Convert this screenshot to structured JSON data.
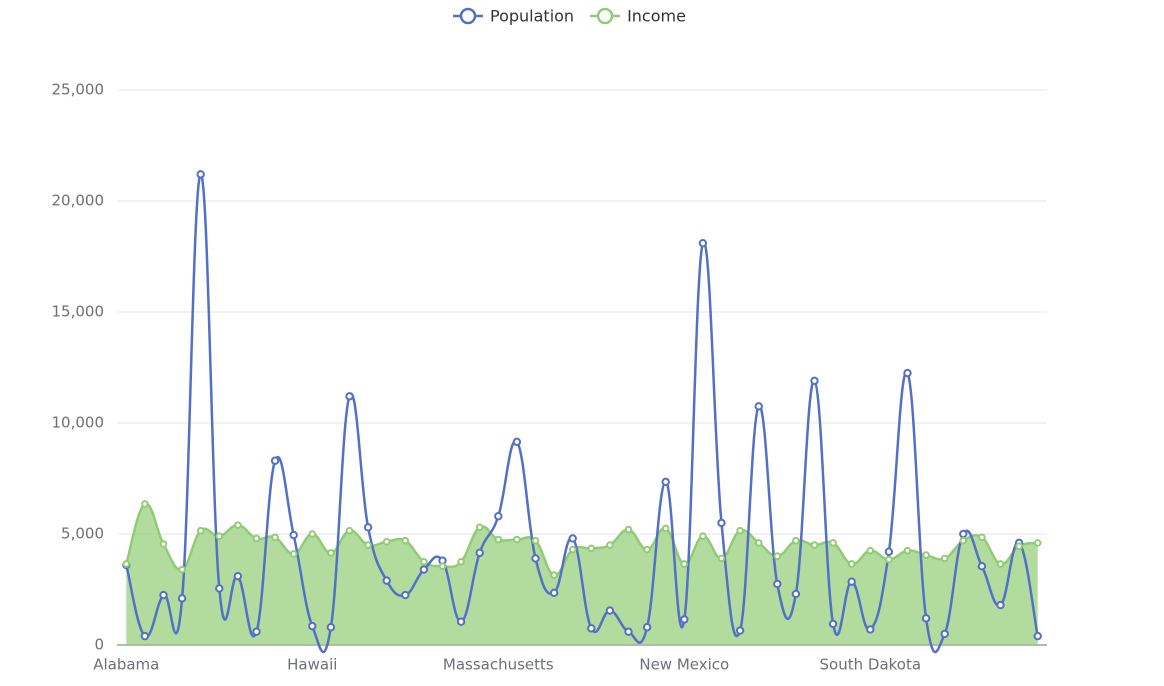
{
  "chart_data": {
    "type": "line",
    "categories": [
      "Alabama",
      null,
      null,
      null,
      null,
      null,
      null,
      null,
      null,
      null,
      "Hawaii",
      null,
      null,
      null,
      null,
      null,
      null,
      null,
      null,
      null,
      "Massachusetts",
      null,
      null,
      null,
      null,
      null,
      null,
      null,
      null,
      null,
      "New Mexico",
      null,
      null,
      null,
      null,
      null,
      null,
      null,
      null,
      null,
      "South Dakota",
      null,
      null,
      null,
      null,
      null,
      null,
      null,
      null,
      null
    ],
    "series": [
      {
        "name": "Population",
        "color": "#5470c6",
        "values": [
          3600,
          400,
          2250,
          2100,
          21200,
          2550,
          3100,
          600,
          8300,
          4950,
          850,
          800,
          11200,
          5300,
          2900,
          2250,
          3400,
          3800,
          1050,
          4150,
          5800,
          9150,
          3900,
          2350,
          4800,
          750,
          1550,
          600,
          800,
          7350,
          1150,
          18100,
          5500,
          650,
          10750,
          2750,
          2300,
          11900,
          950,
          2850,
          700,
          4200,
          12250,
          1200,
          500,
          5000,
          3550,
          1800,
          4600,
          400
        ]
      },
      {
        "name": "Income",
        "color": "#91cc75",
        "area": true,
        "values": [
          3650,
          6350,
          4550,
          3400,
          5150,
          4900,
          5400,
          4800,
          4850,
          4100,
          5000,
          4150,
          5150,
          4500,
          4650,
          4700,
          3750,
          3550,
          3750,
          5300,
          4750,
          4750,
          4700,
          3150,
          4300,
          4350,
          4500,
          5200,
          4300,
          5250,
          3650,
          4900,
          3900,
          5150,
          4600,
          4000,
          4700,
          4500,
          4600,
          3650,
          4250,
          3850,
          4250,
          4050,
          3900,
          4700,
          4850,
          3650,
          4450,
          4600
        ]
      }
    ],
    "ylim": [
      0,
      25000
    ],
    "yticks": [
      0,
      {
        "value": 5000,
        "label": "5,000"
      },
      {
        "value": 10000,
        "label": "10,000"
      },
      {
        "value": 15000,
        "label": "15,000"
      },
      {
        "value": 20000,
        "label": "20,000"
      },
      {
        "value": 25000,
        "label": "25,000"
      }
    ],
    "grid": true,
    "legend": "top"
  }
}
